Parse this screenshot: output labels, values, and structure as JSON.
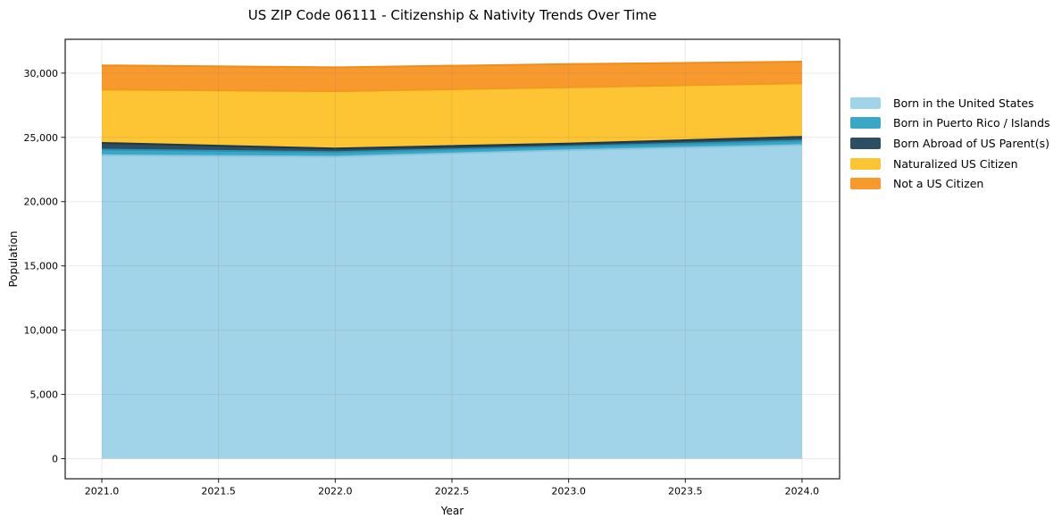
{
  "chart_data": {
    "type": "area",
    "stacked": true,
    "title": "US ZIP Code 06111 - Citizenship & Nativity Trends Over Time",
    "xlabel": "Year",
    "ylabel": "Population",
    "x": [
      2021,
      2022,
      2023,
      2024
    ],
    "series": [
      {
        "name": "Born in the United States",
        "color": "#A1D4E8",
        "edge": "#8CC6DF",
        "values": [
          23600,
          23500,
          24000,
          24400
        ]
      },
      {
        "name": "Born in Puerto Rico / Islands",
        "color": "#3BA7C6",
        "edge": "#2892B4",
        "values": [
          450,
          350,
          290,
          350
        ]
      },
      {
        "name": "Born Abroad of US Parent(s)",
        "color": "#2C4D62",
        "edge": "#1C3847",
        "values": [
          520,
          290,
          230,
          290
        ]
      },
      {
        "name": "Naturalized US Citizen",
        "color": "#FDC433",
        "edge": "#F2991F",
        "values": [
          4150,
          4450,
          4380,
          4170
        ]
      },
      {
        "name": "Not a US Citizen",
        "color": "#F8992E",
        "edge": "#EE8C1C",
        "values": [
          1880,
          1860,
          1800,
          1680
        ]
      }
    ],
    "x_ticks": [
      2021.0,
      2021.5,
      2022.0,
      2022.5,
      2023.0,
      2023.5,
      2024.0
    ],
    "x_tick_labels": [
      "2021.0",
      "2021.5",
      "2022.0",
      "2022.5",
      "2023.0",
      "2023.5",
      "2024.0"
    ],
    "y_ticks": [
      0,
      5000,
      10000,
      15000,
      20000,
      25000,
      30000
    ],
    "y_tick_labels": [
      "0",
      "5,000",
      "10,000",
      "15,000",
      "20,000",
      "25,000",
      "30,000"
    ],
    "xlim": [
      2020.843,
      2024.161
    ],
    "ylim": [
      -1564,
      32630
    ],
    "grid": true,
    "legend_position": "right"
  }
}
